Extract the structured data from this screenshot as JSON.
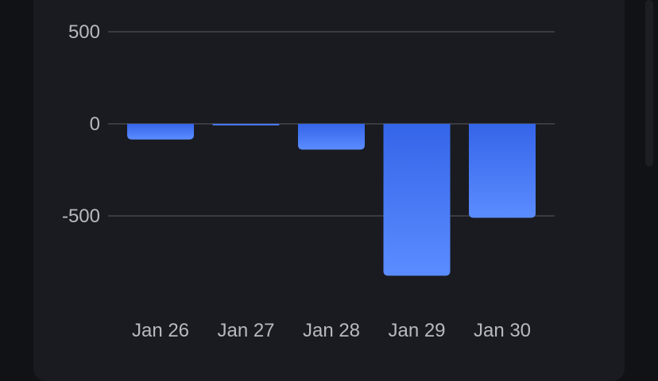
{
  "chart_data": {
    "type": "bar",
    "title": "",
    "xlabel": "",
    "ylabel": "",
    "categories": [
      "Jan 26",
      "Jan 27",
      "Jan 28",
      "Jan 29",
      "Jan 30"
    ],
    "values": [
      -85,
      -5,
      -140,
      -825,
      -510
    ],
    "ylim": [
      -825,
      500
    ],
    "yticks": [
      500,
      0,
      -500
    ],
    "ytick_labels": [
      "500",
      "0",
      "-500"
    ],
    "grid": true,
    "legend": "none",
    "colors": {
      "bar_top": "#3565e8",
      "bar_bottom": "#5b8cff",
      "grid": "#3a3b41",
      "text": "#b8b9bf",
      "background": "#1a1b20"
    }
  }
}
